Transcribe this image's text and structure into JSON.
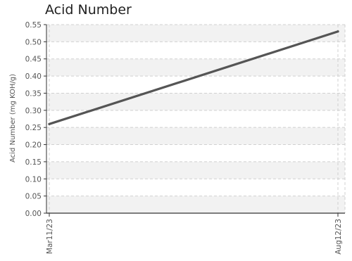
{
  "chart_data": {
    "type": "line",
    "title": "Acid Number",
    "xlabel": "",
    "ylabel": "Acid Number (mg KOH/g)",
    "x": [
      "Mar11/23",
      "Aug12/23"
    ],
    "series": [
      {
        "values": [
          0.26,
          0.53
        ]
      }
    ],
    "ylim": [
      0,
      0.55
    ],
    "yticks": [
      "0.00",
      "0.05",
      "0.10",
      "0.15",
      "0.20",
      "0.25",
      "0.30",
      "0.35",
      "0.40",
      "0.45",
      "0.50",
      "0.55"
    ],
    "grid": true,
    "legend": "none",
    "line_color": "#555555",
    "band_color": "#f2f2f2",
    "grid_color": "#d0d0d0"
  }
}
